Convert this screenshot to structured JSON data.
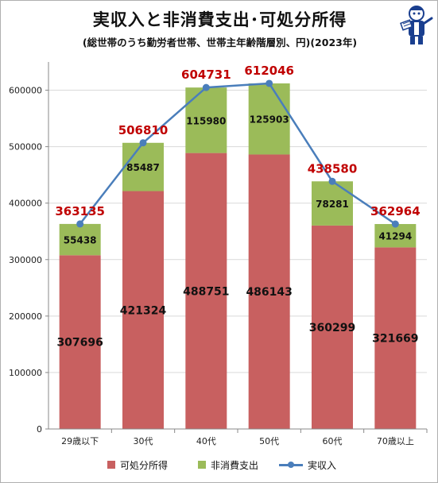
{
  "header": {
    "title": "実収入と非消費支出･可処分所得",
    "subtitle": "(総世帯のうち勤労者世帯、世帯主年齢階層別、円)(2023年)"
  },
  "colors": {
    "disposable": "#c86060",
    "nonconsumption": "#9bbb59",
    "income_line": "#4a7ebb",
    "total_label": "#c00000",
    "grid": "#d9d9d9"
  },
  "chart_data": {
    "type": "bar",
    "stacked": true,
    "categories": [
      "29歳以下",
      "30代",
      "40代",
      "50代",
      "60代",
      "70歳以上"
    ],
    "series": [
      {
        "name": "可処分所得",
        "values": [
          307696,
          421324,
          488751,
          486143,
          360299,
          321669
        ]
      },
      {
        "name": "非消費支出",
        "values": [
          55438,
          85487,
          115980,
          125903,
          78281,
          41294
        ]
      },
      {
        "name": "実収入",
        "type": "line",
        "values": [
          363135,
          506810,
          604731,
          612046,
          438580,
          362964
        ]
      }
    ],
    "ylim": [
      0,
      650000
    ],
    "yticks": [
      0,
      100000,
      200000,
      300000,
      400000,
      500000,
      600000
    ],
    "grid": true,
    "legend_position": "bottom"
  }
}
